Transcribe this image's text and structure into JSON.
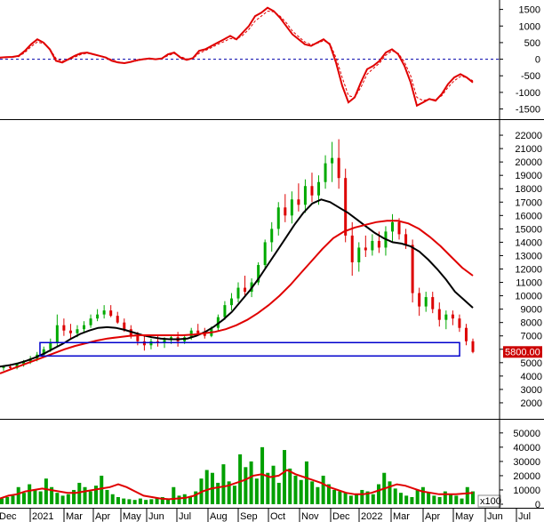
{
  "chart_data": [
    {
      "type": "line",
      "panel": "oscillator",
      "yticks": [
        1500,
        1000,
        500,
        0,
        -500,
        -1000,
        -1500
      ],
      "ylim": [
        -1700,
        1650
      ],
      "zero_line": true,
      "series": [
        {
          "style": "solid",
          "color": "#e00000",
          "values": [
            50,
            60,
            70,
            100,
            250,
            450,
            600,
            500,
            300,
            -50,
            -100,
            0,
            100,
            180,
            200,
            150,
            100,
            50,
            -50,
            -100,
            -120,
            -80,
            -30,
            0,
            20,
            0,
            20,
            150,
            200,
            50,
            -20,
            30,
            250,
            300,
            400,
            500,
            600,
            700,
            600,
            800,
            1000,
            1300,
            1400,
            1550,
            1450,
            1250,
            1000,
            750,
            600,
            450,
            400,
            500,
            600,
            450,
            -100,
            -800,
            -1300,
            -1150,
            -700,
            -300,
            -200,
            -50,
            200,
            300,
            150,
            -200,
            -700,
            -1400,
            -1300,
            -1200,
            -1250,
            -1050,
            -750,
            -550,
            -450,
            -550,
            -700
          ]
        },
        {
          "style": "dashed",
          "color": "#e00000",
          "values": [
            40,
            50,
            60,
            80,
            200,
            380,
            520,
            470,
            320,
            20,
            -60,
            -20,
            60,
            140,
            180,
            150,
            110,
            60,
            -20,
            -80,
            -110,
            -90,
            -50,
            -10,
            10,
            0,
            10,
            110,
            170,
            80,
            10,
            20,
            180,
            260,
            350,
            450,
            530,
            620,
            600,
            720,
            900,
            1150,
            1300,
            1450,
            1430,
            1300,
            1100,
            850,
            680,
            520,
            440,
            480,
            560,
            480,
            50,
            -550,
            -1100,
            -1150,
            -850,
            -450,
            -280,
            -120,
            120,
            250,
            180,
            -80,
            -500,
            -1150,
            -1250,
            -1200,
            -1220,
            -1100,
            -850,
            -650,
            -520,
            -550,
            -650
          ]
        }
      ]
    },
    {
      "type": "candlestick",
      "panel": "price",
      "yticks": [
        22000,
        21000,
        20000,
        19000,
        18000,
        17000,
        16000,
        15000,
        14000,
        13000,
        12000,
        11000,
        10000,
        9000,
        8000,
        7000,
        6000,
        5000,
        4000,
        3000,
        2000
      ],
      "ylim": [
        1000,
        23000
      ],
      "last_price_label": "5800.00",
      "support_zone": {
        "low": 5500,
        "high": 6500,
        "x_start": 8,
        "x_end": 92
      },
      "ohlc": [
        [
          4600,
          4800,
          4400,
          4700
        ],
        [
          4700,
          4900,
          4500,
          4600
        ],
        [
          4600,
          5000,
          4500,
          4900
        ],
        [
          4900,
          5200,
          4700,
          5100
        ],
        [
          5100,
          5500,
          4900,
          5300
        ],
        [
          5300,
          5800,
          5100,
          5600
        ],
        [
          5600,
          6200,
          5400,
          6000
        ],
        [
          6000,
          6800,
          5800,
          6500
        ],
        [
          6500,
          8600,
          6200,
          7800
        ],
        [
          7800,
          8300,
          7000,
          7400
        ],
        [
          7400,
          7900,
          6800,
          7200
        ],
        [
          7200,
          7800,
          6900,
          7500
        ],
        [
          7500,
          8100,
          7200,
          7800
        ],
        [
          7800,
          8600,
          7600,
          8300
        ],
        [
          8300,
          9000,
          8100,
          8600
        ],
        [
          8600,
          9300,
          8300,
          8900
        ],
        [
          8900,
          9300,
          8400,
          8500
        ],
        [
          8500,
          8800,
          7900,
          8000
        ],
        [
          8000,
          8300,
          7300,
          7500
        ],
        [
          7500,
          7800,
          6800,
          7000
        ],
        [
          7000,
          7300,
          6300,
          6600
        ],
        [
          6600,
          7000,
          5900,
          6300
        ],
        [
          6300,
          6800,
          6000,
          6600
        ],
        [
          6600,
          7000,
          6200,
          6500
        ],
        [
          6500,
          6900,
          6100,
          6700
        ],
        [
          6700,
          7100,
          6400,
          6900
        ],
        [
          6900,
          7300,
          6200,
          6600
        ],
        [
          6600,
          7100,
          6400,
          6900
        ],
        [
          6900,
          7600,
          6700,
          7400
        ],
        [
          7400,
          7900,
          7100,
          7200
        ],
        [
          7200,
          7600,
          6800,
          7000
        ],
        [
          7000,
          7700,
          6900,
          7600
        ],
        [
          7600,
          8600,
          7400,
          8400
        ],
        [
          8400,
          9600,
          8200,
          9300
        ],
        [
          9300,
          10200,
          8900,
          9800
        ],
        [
          9800,
          11000,
          9500,
          10600
        ],
        [
          10600,
          11500,
          10000,
          10300
        ],
        [
          10300,
          11300,
          9900,
          11000
        ],
        [
          11000,
          12500,
          10800,
          12300
        ],
        [
          12300,
          14200,
          12000,
          14000
        ],
        [
          14000,
          15500,
          13300,
          15000
        ],
        [
          15000,
          17000,
          14500,
          16600
        ],
        [
          16600,
          17600,
          15500,
          16000
        ],
        [
          16000,
          17800,
          15400,
          17200
        ],
        [
          17200,
          18400,
          16300,
          16800
        ],
        [
          16800,
          18700,
          16200,
          18200
        ],
        [
          18200,
          19200,
          17000,
          17500
        ],
        [
          17500,
          19000,
          16800,
          18500
        ],
        [
          18500,
          20500,
          18000,
          19900
        ],
        [
          19900,
          21500,
          18500,
          20300
        ],
        [
          20300,
          21700,
          18000,
          18800
        ],
        [
          18800,
          19500,
          14000,
          14500
        ],
        [
          14500,
          15500,
          11500,
          12500
        ],
        [
          12500,
          14000,
          11800,
          13600
        ],
        [
          13600,
          14500,
          12900,
          13400
        ],
        [
          13400,
          14600,
          13000,
          14100
        ],
        [
          14100,
          14800,
          13200,
          13600
        ],
        [
          13600,
          15200,
          13000,
          14800
        ],
        [
          14800,
          16100,
          14000,
          15500
        ],
        [
          15500,
          15800,
          14200,
          14600
        ],
        [
          14600,
          15000,
          13500,
          13800
        ],
        [
          13800,
          14200,
          9500,
          10200
        ],
        [
          10200,
          10600,
          8500,
          9200
        ],
        [
          9200,
          10300,
          8800,
          9900
        ],
        [
          9900,
          10300,
          8700,
          9000
        ],
        [
          9000,
          9500,
          7700,
          8200
        ],
        [
          8200,
          8900,
          7500,
          8600
        ],
        [
          8600,
          8900,
          7800,
          8300
        ],
        [
          8300,
          8600,
          7300,
          7600
        ],
        [
          7600,
          7900,
          6300,
          6600
        ],
        [
          6600,
          6800,
          5700,
          5800
        ]
      ],
      "series": [
        {
          "color": "#000000",
          "values": [
            4700,
            4800,
            4950,
            5150,
            5400,
            5700,
            6050,
            6400,
            6800,
            7150,
            7400,
            7600,
            7650,
            7600,
            7450,
            7250,
            7050,
            6900,
            6800,
            6750,
            6750,
            6800,
            7000,
            7300,
            7700,
            8200,
            8800,
            9600,
            10400,
            11300,
            12300,
            13300,
            14300,
            15300,
            16200,
            16900,
            17200,
            17000,
            16600,
            16200,
            15700,
            15200,
            14700,
            14300,
            14000,
            13900,
            13700,
            13300,
            12700,
            12000,
            11200,
            10300,
            9700,
            9100
          ]
        },
        {
          "color": "#e00000",
          "values": [
            4200,
            4500,
            4800,
            5100,
            5400,
            5700,
            6000,
            6250,
            6450,
            6650,
            6800,
            6900,
            7000,
            7050,
            7050,
            7050,
            7050,
            7050,
            7100,
            7200,
            7300,
            7500,
            7800,
            8200,
            8700,
            9300,
            10000,
            10800,
            11700,
            12600,
            13500,
            14300,
            14800,
            15100,
            15300,
            15500,
            15600,
            15600,
            15400,
            15000,
            14400,
            13700,
            12900,
            12100,
            11500
          ]
        }
      ]
    },
    {
      "type": "bar",
      "panel": "volume",
      "unit_label": "x100",
      "yticks": [
        50000,
        40000,
        30000,
        20000,
        10000,
        0
      ],
      "ylim": [
        0,
        58000
      ],
      "values": [
        4000,
        5000,
        6000,
        12000,
        8000,
        14000,
        10000,
        9000,
        18000,
        12000,
        8000,
        6000,
        7000,
        10000,
        15000,
        12000,
        9000,
        13000,
        20000,
        10000,
        7000,
        5000,
        4000,
        3500,
        3000,
        4000,
        3000,
        3500,
        4500,
        5000,
        4000,
        12000,
        6000,
        7000,
        5000,
        9000,
        18000,
        24000,
        22000,
        15000,
        28000,
        16000,
        13000,
        35000,
        26000,
        30000,
        18000,
        40000,
        22000,
        27000,
        15000,
        38000,
        25000,
        20000,
        17000,
        30000,
        16000,
        12000,
        20000,
        14000,
        10000,
        9000,
        8000,
        6000,
        7000,
        10000,
        9000,
        7000,
        14000,
        22000,
        16000,
        11000,
        8000,
        6000,
        5000,
        10000,
        12000,
        8000,
        6000,
        5000,
        9000,
        7000,
        6000,
        4000,
        12000,
        9000
      ],
      "series": [
        {
          "color": "#e00000",
          "values": [
            4000,
            6000,
            7000,
            9000,
            10000,
            11000,
            10000,
            9000,
            8000,
            8000,
            9000,
            10000,
            11000,
            12000,
            14000,
            12000,
            9000,
            6000,
            5000,
            4000,
            3500,
            4000,
            4500,
            6000,
            9000,
            11000,
            12000,
            13000,
            15000,
            17000,
            20000,
            21000,
            19000,
            20000,
            24000,
            21000,
            19000,
            17000,
            15000,
            12000,
            10000,
            8000,
            7000,
            7000,
            8000,
            10000,
            12000,
            14000,
            13000,
            11000,
            9000,
            8000,
            7000,
            7000,
            7000,
            7500,
            8000
          ]
        }
      ]
    },
    {
      "type": "axis",
      "panel": "time",
      "labels": [
        "Dec",
        "2021",
        "Mar",
        "Apr",
        "May",
        "Jun",
        "Jul",
        "Aug",
        "Sep",
        "Oct",
        "Nov",
        "Dec",
        "2022",
        "Mar",
        "Apr",
        "May",
        "Jun",
        "Jul"
      ],
      "label_positions": [
        -1.5,
        17,
        36,
        52.5,
        68,
        82.5,
        99.5,
        117,
        134,
        151,
        168.5,
        186,
        202,
        220,
        238,
        255,
        273,
        290.5
      ]
    }
  ]
}
